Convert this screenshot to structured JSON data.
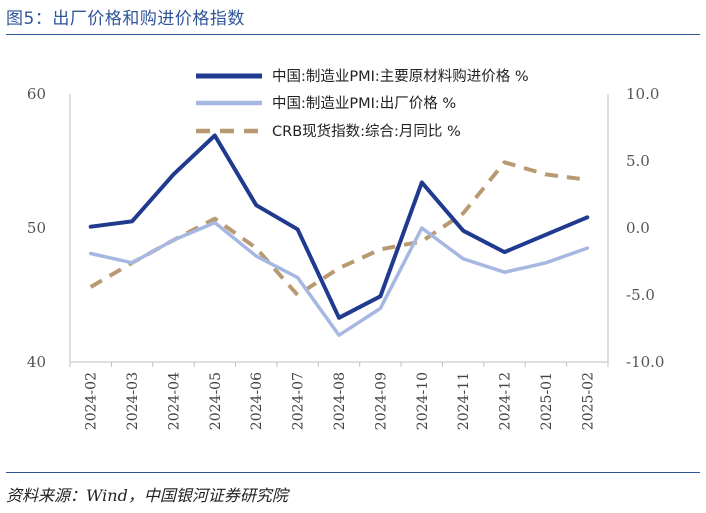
{
  "figure": {
    "title": "图5：出厂价格和购进价格指数",
    "source": "资料来源：Wind，中国银河证券研究院"
  },
  "chart_data": {
    "type": "line",
    "categories": [
      "2024-02",
      "2024-03",
      "2024-04",
      "2024-05",
      "2024-06",
      "2024-07",
      "2024-08",
      "2024-09",
      "2024-10",
      "2024-11",
      "2024-12",
      "2025-01",
      "2025-02"
    ],
    "left_axis": {
      "ylim": [
        40,
        60
      ],
      "ticks": [
        "60",
        "50",
        "40"
      ],
      "tick_values": [
        60,
        50,
        40
      ]
    },
    "right_axis": {
      "ylim": [
        -10,
        10
      ],
      "ticks": [
        "10.0",
        "5.0",
        "0.0",
        "-5.0",
        "-10.0"
      ],
      "tick_values": [
        10,
        5,
        0,
        -5,
        -10
      ]
    },
    "series": [
      {
        "name": "中国:制造业PMI:主要原材料购进价格 %",
        "axis": "left",
        "color": "#1f3a8f",
        "style": "solid-thick",
        "values": [
          50.1,
          50.5,
          54.0,
          56.9,
          51.7,
          49.9,
          43.3,
          44.9,
          53.4,
          49.8,
          48.2,
          49.5,
          50.8
        ]
      },
      {
        "name": "中国:制造业PMI:出厂价格 %",
        "axis": "left",
        "color": "#a6b8e2",
        "style": "solid",
        "values": [
          48.1,
          47.4,
          49.1,
          50.4,
          47.9,
          46.3,
          42.0,
          44.0,
          50.0,
          47.7,
          46.7,
          47.4,
          48.5
        ]
      },
      {
        "name": "CRB现货指数:综合:月同比 %",
        "axis": "right",
        "color": "#b89a72",
        "style": "dashed",
        "values": [
          -4.4,
          -2.6,
          -0.9,
          0.7,
          -1.5,
          -5.0,
          -3.0,
          -1.6,
          -1.0,
          1.1,
          4.9,
          4.0,
          3.6
        ]
      }
    ]
  }
}
